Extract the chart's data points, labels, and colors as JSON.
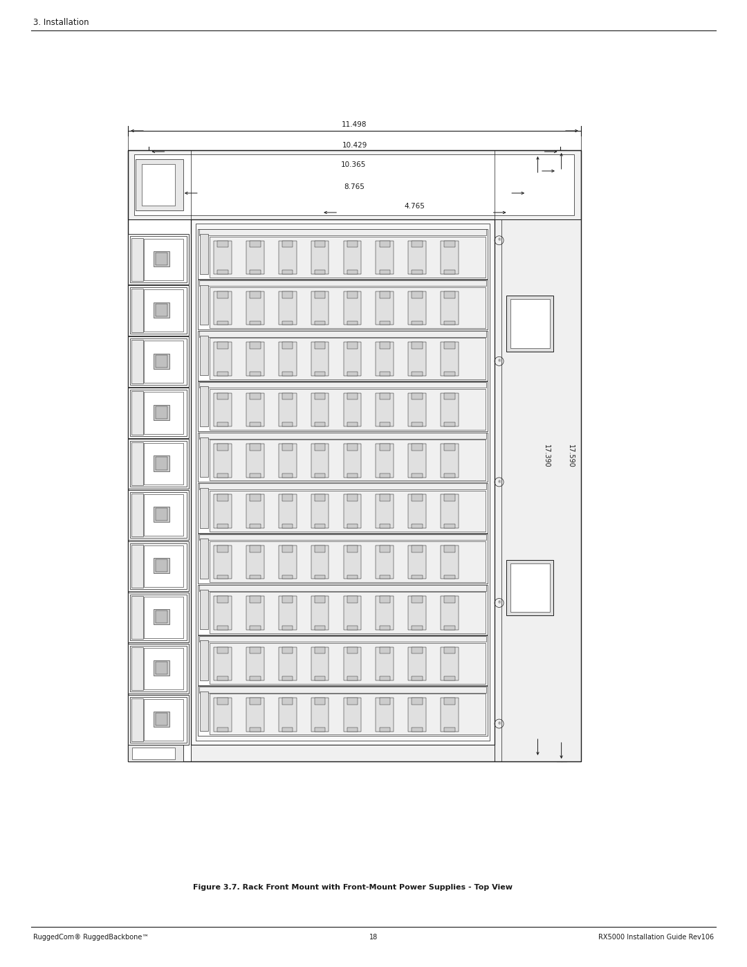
{
  "title_header": "3. Installation",
  "footer_left": "RuggedCom® RuggedBackbone™",
  "footer_center": "18",
  "footer_right": "RX5000 Installation Guide Rev106",
  "figure_caption": "Figure 3.7. Rack Front Mount with Front-Mount Power Supplies - Top View",
  "dim_11498": "11.498",
  "dim_10429": "10.429",
  "dim_10365": "10.365",
  "dim_8765": "8.765",
  "dim_4765": "4.765",
  "dim_17590": "17.590",
  "dim_17390": "17.390",
  "bg_color": "#ffffff",
  "line_color": "#1a1a1a"
}
